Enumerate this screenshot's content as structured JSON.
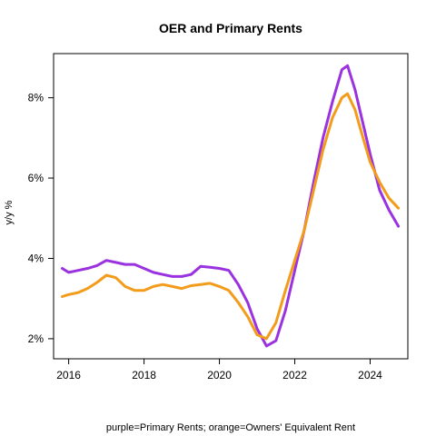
{
  "chart_data": {
    "type": "line",
    "title": "OER and Primary Rents",
    "ylabel": "y/y %",
    "caption": "purple=Primary Rents; orange=Owners' Equivalent Rent",
    "xlim": [
      2015.6,
      2025.0
    ],
    "ylim": [
      1.5,
      9.1
    ],
    "x_ticks": [
      2016,
      2018,
      2020,
      2022,
      2024
    ],
    "x_tick_labels": [
      "2016",
      "2018",
      "2020",
      "2022",
      "2024"
    ],
    "y_ticks": [
      2,
      4,
      6,
      8
    ],
    "y_tick_labels": [
      "2%",
      "4%",
      "6%",
      "8%"
    ],
    "grid": false,
    "series": [
      {
        "color": "#9a32e0",
        "points": [
          [
            2015.83,
            3.75
          ],
          [
            2016.0,
            3.65
          ],
          [
            2016.25,
            3.7
          ],
          [
            2016.5,
            3.75
          ],
          [
            2016.75,
            3.82
          ],
          [
            2017.0,
            3.95
          ],
          [
            2017.25,
            3.9
          ],
          [
            2017.5,
            3.85
          ],
          [
            2017.75,
            3.85
          ],
          [
            2018.0,
            3.75
          ],
          [
            2018.25,
            3.65
          ],
          [
            2018.5,
            3.6
          ],
          [
            2018.75,
            3.55
          ],
          [
            2019.0,
            3.55
          ],
          [
            2019.25,
            3.6
          ],
          [
            2019.5,
            3.8
          ],
          [
            2019.75,
            3.78
          ],
          [
            2020.0,
            3.75
          ],
          [
            2020.25,
            3.7
          ],
          [
            2020.5,
            3.35
          ],
          [
            2020.75,
            2.9
          ],
          [
            2021.0,
            2.25
          ],
          [
            2021.25,
            1.82
          ],
          [
            2021.5,
            1.95
          ],
          [
            2021.75,
            2.7
          ],
          [
            2022.0,
            3.7
          ],
          [
            2022.25,
            4.7
          ],
          [
            2022.5,
            5.9
          ],
          [
            2022.75,
            7.0
          ],
          [
            2023.0,
            7.9
          ],
          [
            2023.25,
            8.7
          ],
          [
            2023.4,
            8.8
          ],
          [
            2023.6,
            8.2
          ],
          [
            2023.75,
            7.6
          ],
          [
            2024.0,
            6.6
          ],
          [
            2024.25,
            5.7
          ],
          [
            2024.5,
            5.2
          ],
          [
            2024.75,
            4.8
          ]
        ]
      },
      {
        "color": "#f39b1a",
        "points": [
          [
            2015.83,
            3.05
          ],
          [
            2016.0,
            3.1
          ],
          [
            2016.25,
            3.15
          ],
          [
            2016.5,
            3.25
          ],
          [
            2016.75,
            3.4
          ],
          [
            2017.0,
            3.58
          ],
          [
            2017.25,
            3.52
          ],
          [
            2017.5,
            3.3
          ],
          [
            2017.75,
            3.2
          ],
          [
            2018.0,
            3.2
          ],
          [
            2018.25,
            3.3
          ],
          [
            2018.5,
            3.35
          ],
          [
            2018.75,
            3.3
          ],
          [
            2019.0,
            3.25
          ],
          [
            2019.25,
            3.32
          ],
          [
            2019.5,
            3.35
          ],
          [
            2019.75,
            3.38
          ],
          [
            2020.0,
            3.3
          ],
          [
            2020.25,
            3.2
          ],
          [
            2020.5,
            2.9
          ],
          [
            2020.75,
            2.55
          ],
          [
            2021.0,
            2.1
          ],
          [
            2021.25,
            2.0
          ],
          [
            2021.5,
            2.4
          ],
          [
            2021.75,
            3.2
          ],
          [
            2022.0,
            3.95
          ],
          [
            2022.25,
            4.7
          ],
          [
            2022.5,
            5.7
          ],
          [
            2022.75,
            6.7
          ],
          [
            2023.0,
            7.5
          ],
          [
            2023.25,
            8.0
          ],
          [
            2023.4,
            8.1
          ],
          [
            2023.6,
            7.7
          ],
          [
            2023.75,
            7.2
          ],
          [
            2024.0,
            6.4
          ],
          [
            2024.25,
            5.9
          ],
          [
            2024.5,
            5.5
          ],
          [
            2024.75,
            5.25
          ]
        ]
      }
    ]
  }
}
